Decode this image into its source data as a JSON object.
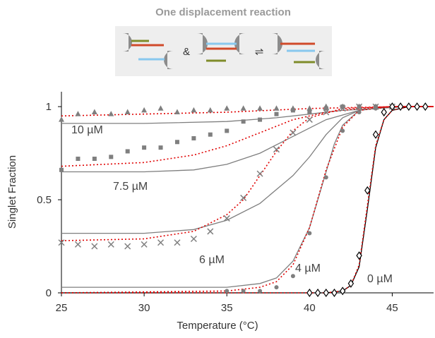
{
  "chart_data": {
    "type": "scatter",
    "xlabel": "Temperature (°C)",
    "ylabel": "Singlet Fraction",
    "xlim": [
      25,
      47.5
    ],
    "ylim": [
      0,
      1.08
    ],
    "xticks": [
      25,
      30,
      35,
      40,
      45
    ],
    "yticks": [
      0,
      0.5,
      1
    ],
    "grid": false,
    "annotations": [
      "10 µM",
      "7.5 µM",
      "6 µM",
      "4 µM",
      "0 µM"
    ],
    "series": [
      {
        "marker": "triangle",
        "color": "#7f7f7f",
        "x": [
          25,
          26,
          27,
          28,
          29,
          30,
          31,
          32,
          33,
          34,
          35,
          36,
          37,
          38,
          39,
          40,
          41,
          42,
          43,
          44,
          45
        ],
        "values": [
          0.93,
          0.96,
          0.97,
          0.96,
          0.97,
          0.98,
          0.99,
          0.97,
          0.98,
          0.98,
          0.99,
          0.99,
          0.99,
          0.99,
          0.99,
          0.99,
          1.0,
          1.0,
          1.0,
          1.0,
          1.0
        ]
      },
      {
        "marker": "square",
        "color": "#7f7f7f",
        "x": [
          25,
          26,
          27,
          28,
          29,
          30,
          31,
          32,
          33,
          34,
          35,
          36,
          37,
          38,
          39,
          40,
          41,
          42,
          43,
          44,
          45
        ],
        "values": [
          0.66,
          0.72,
          0.72,
          0.73,
          0.76,
          0.78,
          0.78,
          0.81,
          0.83,
          0.85,
          0.87,
          0.92,
          0.93,
          0.96,
          0.98,
          0.97,
          0.99,
          1.0,
          1.0,
          1.0,
          1.0
        ]
      },
      {
        "marker": "x",
        "color": "#7f7f7f",
        "x": [
          25,
          26,
          27,
          28,
          29,
          30,
          31,
          32,
          33,
          34,
          35,
          36,
          37,
          38,
          39,
          40,
          41,
          42,
          43,
          44,
          45
        ],
        "values": [
          0.27,
          0.26,
          0.25,
          0.26,
          0.25,
          0.26,
          0.27,
          0.27,
          0.29,
          0.33,
          0.4,
          0.51,
          0.64,
          0.77,
          0.86,
          0.93,
          0.97,
          0.99,
          1.0,
          1.0,
          1.0
        ]
      },
      {
        "marker": "circle",
        "color": "#7f7f7f",
        "x": [
          35,
          36,
          37,
          38,
          39,
          40,
          41,
          42,
          43,
          44,
          45
        ],
        "values": [
          0.01,
          0.01,
          0.01,
          0.03,
          0.09,
          0.32,
          0.62,
          0.87,
          0.97,
          0.99,
          1.0
        ]
      },
      {
        "marker": "diamond",
        "color": "#000000",
        "x": [
          40,
          40.5,
          41,
          41.5,
          42,
          42.5,
          43,
          43.5,
          44,
          44.5,
          45,
          45.5,
          46,
          46.5,
          47
        ],
        "values": [
          0,
          0,
          0,
          0,
          0.01,
          0.05,
          0.2,
          0.55,
          0.85,
          0.97,
          1.0,
          1.0,
          1.0,
          1.0,
          1.0
        ]
      }
    ],
    "fits": [
      {
        "color": "#7f7f7f",
        "style": "solid",
        "x": [
          25,
          30,
          35,
          38,
          40,
          42,
          44,
          46,
          47.5
        ],
        "values": [
          0.91,
          0.91,
          0.92,
          0.94,
          0.96,
          0.98,
          0.99,
          1.0,
          1.0
        ]
      },
      {
        "color": "#7f7f7f",
        "style": "solid",
        "x": [
          25,
          30,
          33,
          35,
          37,
          39,
          41,
          43,
          45,
          47.5
        ],
        "values": [
          0.65,
          0.65,
          0.66,
          0.69,
          0.75,
          0.84,
          0.93,
          0.98,
          1.0,
          1.0
        ]
      },
      {
        "color": "#7f7f7f",
        "style": "solid",
        "x": [
          25,
          30,
          33,
          35,
          37,
          39,
          40,
          41,
          42,
          43,
          45,
          47.5
        ],
        "values": [
          0.32,
          0.32,
          0.34,
          0.39,
          0.48,
          0.63,
          0.73,
          0.85,
          0.94,
          0.98,
          1.0,
          1.0
        ]
      },
      {
        "color": "#7f7f7f",
        "style": "solid",
        "x": [
          25,
          35,
          37,
          38,
          39,
          40,
          41,
          41.5,
          42,
          43,
          45,
          47.5
        ],
        "values": [
          0.03,
          0.03,
          0.05,
          0.08,
          0.17,
          0.35,
          0.65,
          0.8,
          0.9,
          0.98,
          1.0,
          1.0
        ]
      },
      {
        "color": "#000000",
        "style": "solid",
        "x": [
          25,
          41,
          42,
          42.5,
          43,
          43.5,
          44,
          44.5,
          45,
          46,
          47.5
        ],
        "values": [
          0,
          0,
          0.01,
          0.04,
          0.14,
          0.45,
          0.78,
          0.93,
          0.98,
          1.0,
          1.0
        ]
      },
      {
        "color": "#e00000",
        "style": "dotted",
        "x": [
          25,
          35,
          40,
          45,
          47.5
        ],
        "values": [
          0.95,
          0.97,
          0.99,
          1.0,
          1.0
        ]
      },
      {
        "color": "#e00000",
        "style": "dotted",
        "x": [
          25,
          30,
          33,
          35,
          37,
          39,
          41,
          43,
          45,
          47.5
        ],
        "values": [
          0.68,
          0.7,
          0.74,
          0.79,
          0.86,
          0.93,
          0.97,
          0.99,
          1.0,
          1.0
        ]
      },
      {
        "color": "#e00000",
        "style": "dotted",
        "x": [
          25,
          30,
          33,
          35,
          36,
          37,
          38,
          39,
          40,
          42,
          45,
          47.5
        ],
        "values": [
          0.28,
          0.29,
          0.33,
          0.42,
          0.5,
          0.63,
          0.76,
          0.87,
          0.94,
          0.99,
          1.0,
          1.0
        ]
      },
      {
        "color": "#e00000",
        "style": "dotted",
        "x": [
          25,
          35,
          37,
          38,
          39,
          40,
          41,
          42,
          43,
          45,
          47.5
        ],
        "values": [
          0,
          0.01,
          0.03,
          0.06,
          0.15,
          0.35,
          0.66,
          0.89,
          0.98,
          1.0,
          1.0
        ]
      },
      {
        "color": "#e00000",
        "style": "dotted",
        "x": [
          25,
          41,
          42,
          42.5,
          43,
          43.5,
          44,
          44.5,
          45,
          46,
          47.5
        ],
        "values": [
          0,
          0,
          0.01,
          0.04,
          0.15,
          0.47,
          0.79,
          0.93,
          0.98,
          1.0,
          1.0
        ]
      }
    ]
  },
  "inset": {
    "title": "One displacement reaction",
    "symbols": [
      "&",
      "⇌"
    ]
  }
}
